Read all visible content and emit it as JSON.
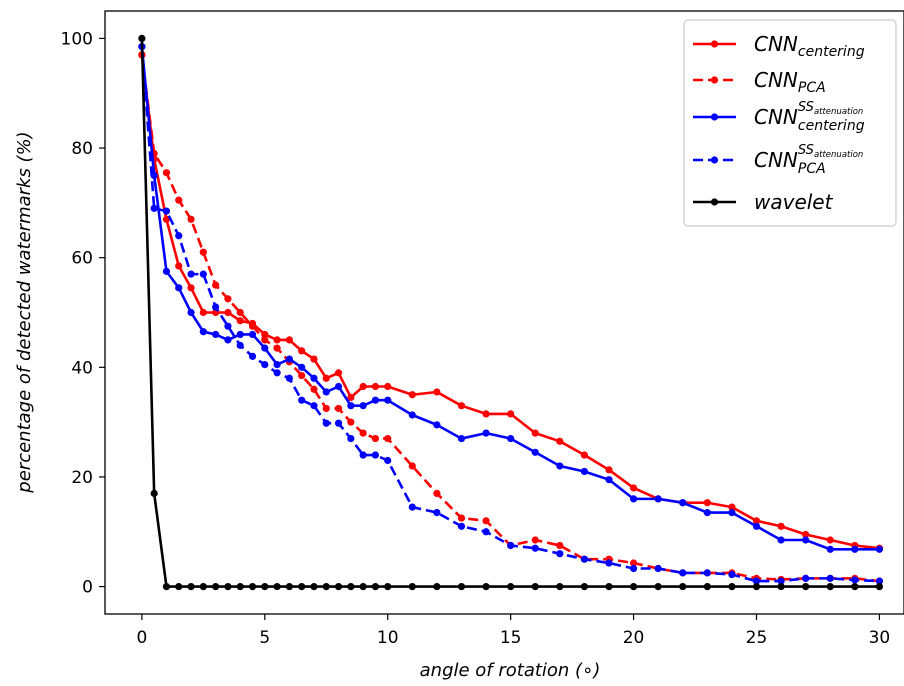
{
  "chart_data": {
    "type": "line",
    "title": "",
    "xlabel": "angle of rotation (∘)",
    "ylabel": "percentage of detected watermarks (%)",
    "xlim": [
      -1.5,
      31.0
    ],
    "ylim": [
      -5,
      105
    ],
    "xticks": [
      0,
      5,
      10,
      15,
      20,
      25,
      30
    ],
    "yticks": [
      0,
      20,
      40,
      60,
      80,
      100
    ],
    "grid": false,
    "legend_position": "top-right",
    "series": [
      {
        "name": "CNN",
        "name_sub": "centering",
        "name_sup": "",
        "color": "#ff0000",
        "dash": "solid",
        "x": [
          0,
          0.5,
          1,
          1.5,
          2,
          2.5,
          3,
          3.5,
          4,
          4.5,
          5,
          5.5,
          6,
          6.5,
          7,
          7.5,
          8,
          8.5,
          9,
          9.5,
          10,
          11,
          12,
          13,
          14,
          15,
          16,
          17,
          18,
          19,
          20,
          21,
          22,
          23,
          24,
          25,
          26,
          27,
          28,
          29,
          30
        ],
        "y": [
          97,
          78,
          67,
          58.5,
          54.5,
          50,
          50,
          50,
          48.5,
          48,
          46,
          45,
          45,
          43,
          41.5,
          38,
          39,
          34.5,
          36.5,
          36.5,
          36.5,
          35,
          35.5,
          33,
          31.5,
          31.5,
          28,
          26.5,
          24,
          21.3,
          18,
          16,
          15.3,
          15.3,
          14.5,
          12,
          11,
          9.5,
          8.5,
          7.5,
          7
        ]
      },
      {
        "name": "CNN",
        "name_sub": "PCA",
        "name_sup": "",
        "color": "#ff0000",
        "dash": "dashed",
        "x": [
          0,
          0.5,
          1,
          1.5,
          2,
          2.5,
          3,
          3.5,
          4,
          4.5,
          5,
          5.5,
          6,
          6.5,
          7,
          7.5,
          8,
          8.5,
          9,
          9.5,
          10,
          11,
          12,
          13,
          14,
          15,
          16,
          17,
          18,
          19,
          20,
          21,
          22,
          23,
          24,
          25,
          26,
          27,
          28,
          29,
          30
        ],
        "y": [
          97,
          79,
          75.5,
          70.5,
          67,
          61,
          55,
          52.5,
          50,
          47.5,
          45,
          43.5,
          41,
          38.5,
          36,
          32.5,
          32.5,
          30,
          28,
          27,
          27,
          22,
          17,
          12.5,
          12,
          7.5,
          8.5,
          7.5,
          5,
          5,
          4.3,
          3.3,
          2.5,
          2.5,
          2.5,
          1.5,
          1.3,
          1.5,
          1.5,
          1.5,
          1
        ]
      },
      {
        "name": "CNN",
        "name_sub": "centering",
        "name_sup": "SS",
        "name_sup_sub": "attenuation",
        "color": "#0000ff",
        "dash": "solid",
        "x": [
          0,
          0.5,
          1,
          1.5,
          2,
          2.5,
          3,
          3.5,
          4,
          4.5,
          5,
          5.5,
          6,
          6.5,
          7,
          7.5,
          8,
          8.5,
          9,
          9.5,
          10,
          11,
          12,
          13,
          14,
          15,
          16,
          17,
          18,
          19,
          20,
          21,
          22,
          23,
          24,
          25,
          26,
          27,
          28,
          29,
          30
        ],
        "y": [
          98.5,
          75,
          57.5,
          54.5,
          50,
          46.5,
          46,
          45,
          46,
          46,
          43.5,
          40.5,
          41.5,
          40,
          38,
          35.5,
          36.5,
          33,
          33,
          34,
          34,
          31.3,
          29.5,
          27,
          28,
          27,
          24.5,
          22,
          21,
          19.5,
          16,
          16,
          15.3,
          13.5,
          13.5,
          11,
          8.5,
          8.5,
          6.8,
          6.8,
          6.8
        ]
      },
      {
        "name": "CNN",
        "name_sub": "PCA",
        "name_sup": "SS",
        "name_sup_sub": "attenuation",
        "color": "#0000ff",
        "dash": "dashed",
        "x": [
          0,
          0.5,
          1,
          1.5,
          2,
          2.5,
          3,
          3.5,
          4,
          4.5,
          5,
          5.5,
          6,
          6.5,
          7,
          7.5,
          8,
          8.5,
          9,
          9.5,
          10,
          11,
          12,
          13,
          14,
          15,
          16,
          17,
          18,
          19,
          20,
          21,
          22,
          23,
          24,
          25,
          26,
          27,
          28,
          29,
          30
        ],
        "y": [
          98.5,
          69,
          68.5,
          64,
          57,
          57,
          51,
          47.5,
          44,
          42,
          40.5,
          39,
          38,
          34,
          33,
          29.8,
          29.8,
          27,
          24,
          24,
          23,
          14.5,
          13.5,
          11,
          10,
          7.5,
          7,
          6,
          5,
          4.3,
          3.3,
          3.3,
          2.5,
          2.5,
          2.2,
          1,
          1,
          1.5,
          1.5,
          1.2,
          1
        ]
      },
      {
        "name": "wavelet",
        "name_sub": "",
        "name_sup": "",
        "color": "#000000",
        "dash": "solid",
        "x": [
          0,
          0.5,
          1,
          1.5,
          2,
          2.5,
          3,
          3.5,
          4,
          4.5,
          5,
          5.5,
          6,
          6.5,
          7,
          7.5,
          8,
          8.5,
          9,
          9.5,
          10,
          11,
          12,
          13,
          14,
          15,
          16,
          17,
          18,
          19,
          20,
          21,
          22,
          23,
          24,
          25,
          26,
          27,
          28,
          29,
          30
        ],
        "y": [
          100,
          17,
          0,
          0,
          0,
          0,
          0,
          0,
          0,
          0,
          0,
          0,
          0,
          0,
          0,
          0,
          0,
          0,
          0,
          0,
          0,
          0,
          0,
          0,
          0,
          0,
          0,
          0,
          0,
          0,
          0,
          0,
          0,
          0,
          0,
          0,
          0,
          0,
          0,
          0,
          0
        ]
      }
    ]
  }
}
